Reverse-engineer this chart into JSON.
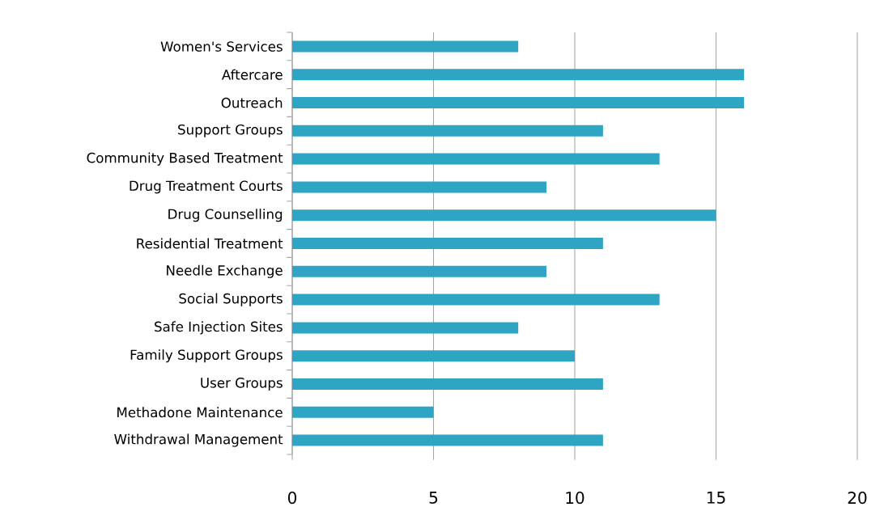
{
  "chart_data": {
    "type": "bar",
    "orientation": "horizontal",
    "categories": [
      "Women's Services",
      "Aftercare",
      "Outreach",
      "Support Groups",
      "Community Based Treatment",
      "Drug Treatment Courts",
      "Drug Counselling",
      "Residential Treatment",
      "Needle Exchange",
      "Social Supports",
      "Safe Injection Sites",
      "Family Support Groups",
      "User Groups",
      "Methadone Maintenance",
      "Withdrawal Management"
    ],
    "values": [
      8,
      16,
      16,
      11,
      13,
      9,
      15,
      11,
      9,
      13,
      8,
      10,
      11,
      5,
      11
    ],
    "color": "#2ea5c3",
    "xlim": [
      0,
      20
    ],
    "xticks": [
      0,
      5,
      10,
      15,
      20
    ],
    "grid": "x"
  }
}
